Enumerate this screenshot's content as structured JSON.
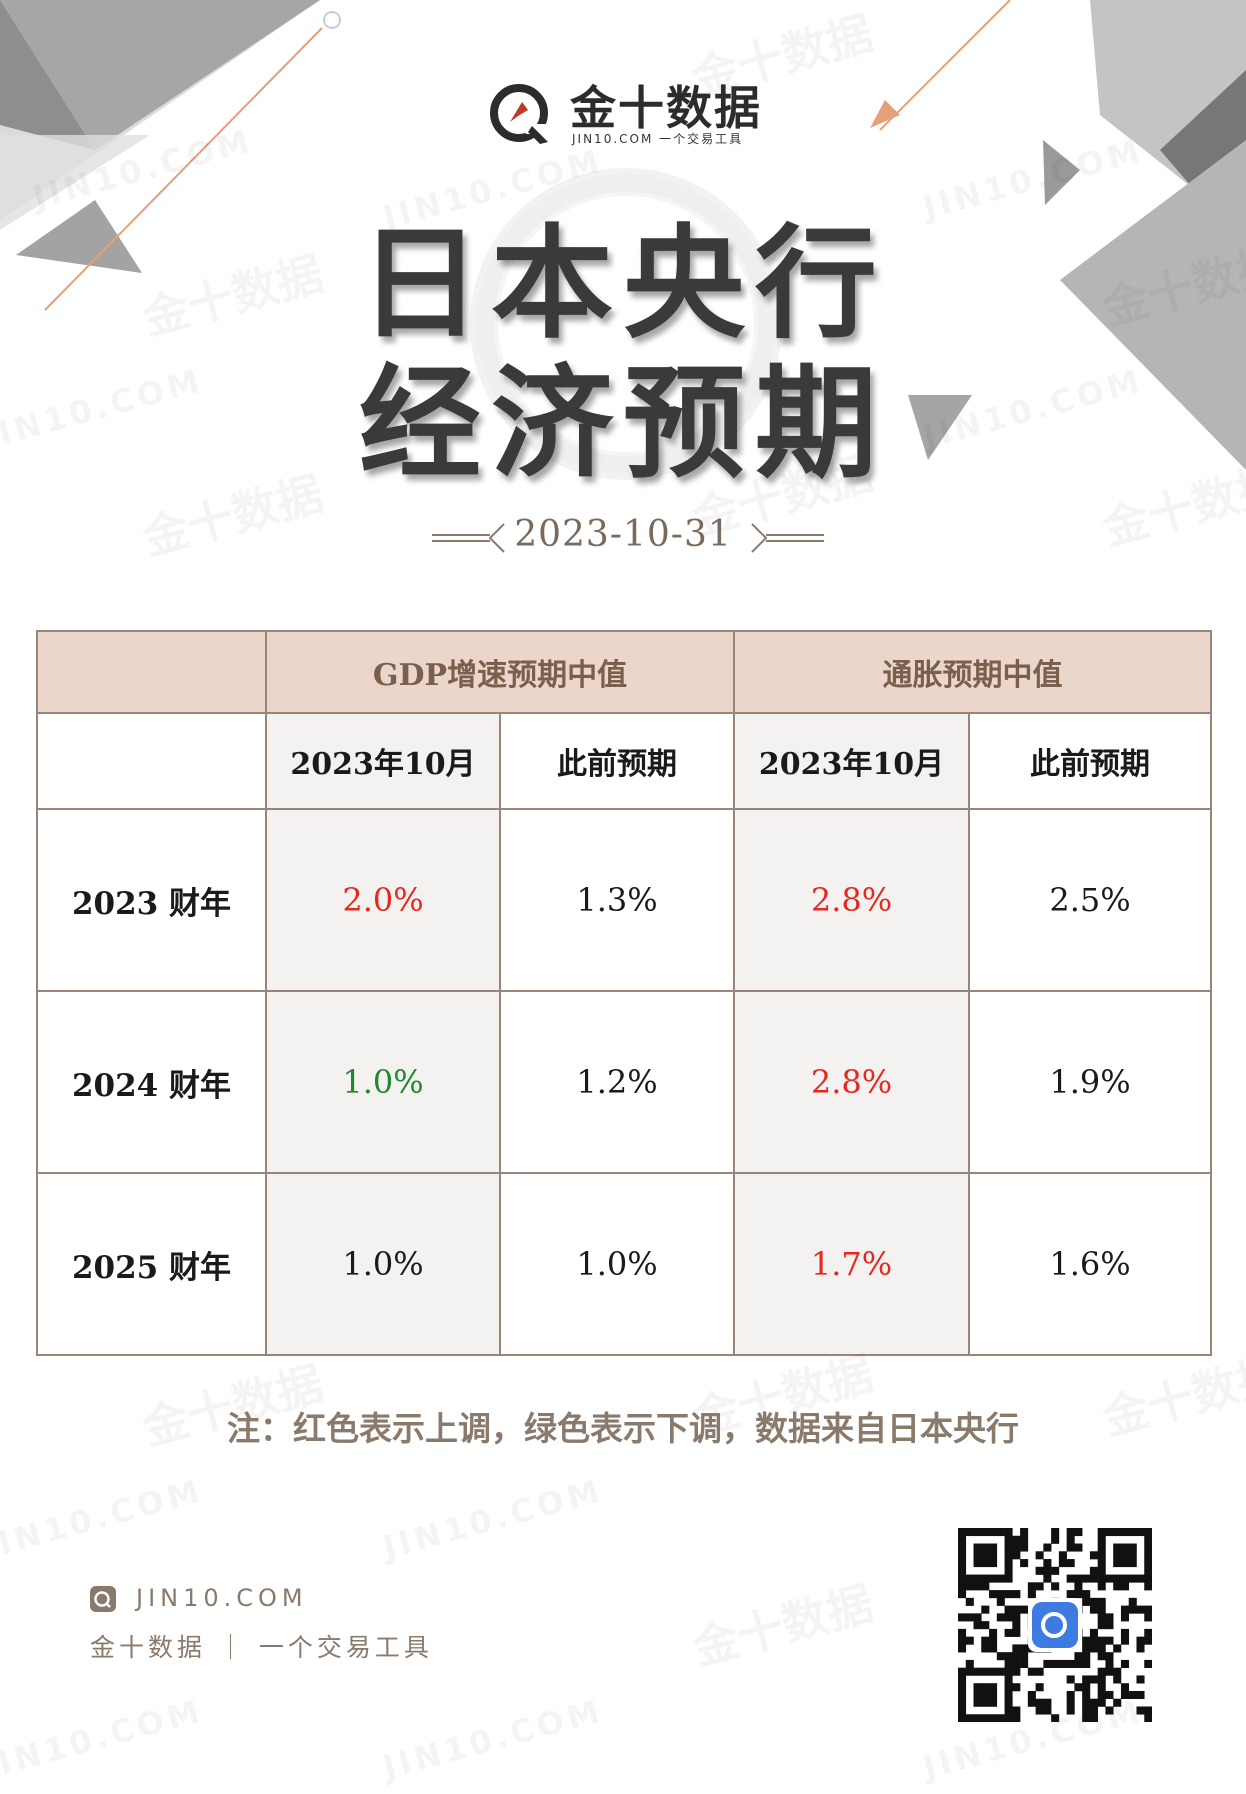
{
  "brand": {
    "name": "金十数据",
    "tagline": "JIN10.COM 一个交易工具",
    "watermark_cn": "金十数据",
    "watermark_en": "JIN10.COM"
  },
  "title": {
    "line1": "日本央行",
    "line2": "经济预期"
  },
  "date": "2023-10-31",
  "table": {
    "group_headers": [
      "GDP增速预期中值",
      "通胀预期中值"
    ],
    "sub_headers": [
      "2023年10月",
      "此前预期",
      "2023年10月",
      "此前预期"
    ],
    "rows": [
      {
        "label": "2023 财年",
        "cells": [
          {
            "text": "2.0%",
            "color": "#e8281e"
          },
          {
            "text": "1.3%",
            "color": "#1a1a1a"
          },
          {
            "text": "2.8%",
            "color": "#e8281e"
          },
          {
            "text": "2.5%",
            "color": "#1a1a1a"
          }
        ]
      },
      {
        "label": "2024 财年",
        "cells": [
          {
            "text": "1.0%",
            "color": "#1e8a2a"
          },
          {
            "text": "1.2%",
            "color": "#1a1a1a"
          },
          {
            "text": "2.8%",
            "color": "#e8281e"
          },
          {
            "text": "1.9%",
            "color": "#1a1a1a"
          }
        ]
      },
      {
        "label": "2025 财年",
        "cells": [
          {
            "text": "1.0%",
            "color": "#1a1a1a"
          },
          {
            "text": "1.0%",
            "color": "#1a1a1a"
          },
          {
            "text": "1.7%",
            "color": "#e8281e"
          },
          {
            "text": "1.6%",
            "color": "#1a1a1a"
          }
        ]
      }
    ]
  },
  "note": "注：红色表示上调，绿色表示下调，数据来自日本央行",
  "footer": {
    "site": "JIN10.COM",
    "name": "金十数据 ｜ 一个交易工具"
  },
  "colors": {
    "up": "#e8281e",
    "down": "#1e8a2a",
    "header_bg": "#ead6cb",
    "accent_brown": "#7a5f4d"
  }
}
